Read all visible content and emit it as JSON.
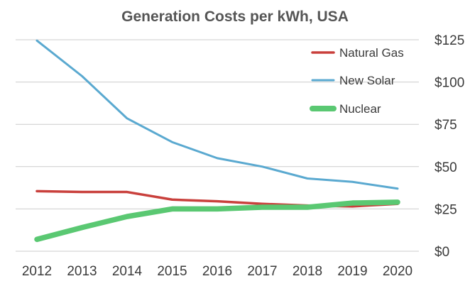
{
  "chart_data": {
    "type": "line",
    "title": "Generation Costs per kWh, USA",
    "x": [
      "2012",
      "2013",
      "2014",
      "2015",
      "2016",
      "2017",
      "2018",
      "2019",
      "2020"
    ],
    "series": [
      {
        "name": "Natural Gas",
        "color": "#c9403c",
        "values": [
          35.5,
          35,
          35,
          30.5,
          29.5,
          28,
          27,
          26.5,
          28
        ]
      },
      {
        "name": "New Solar",
        "color": "#5aa9d0",
        "values": [
          124.5,
          103.5,
          78.5,
          64.5,
          55,
          50,
          43,
          41,
          37
        ]
      },
      {
        "name": "Nuclear",
        "color": "#5ac872",
        "values": [
          7,
          14,
          20.5,
          25,
          25,
          26,
          26,
          28.5,
          29
        ]
      }
    ],
    "yticks": [
      0,
      25,
      50,
      75,
      100,
      125
    ],
    "ytick_labels": [
      "$0",
      "$25",
      "$50",
      "$75",
      "$100",
      "$125"
    ],
    "ylim": [
      0,
      125
    ],
    "y_axis_side": "right",
    "legend_position": "top-right",
    "grid": true
  }
}
